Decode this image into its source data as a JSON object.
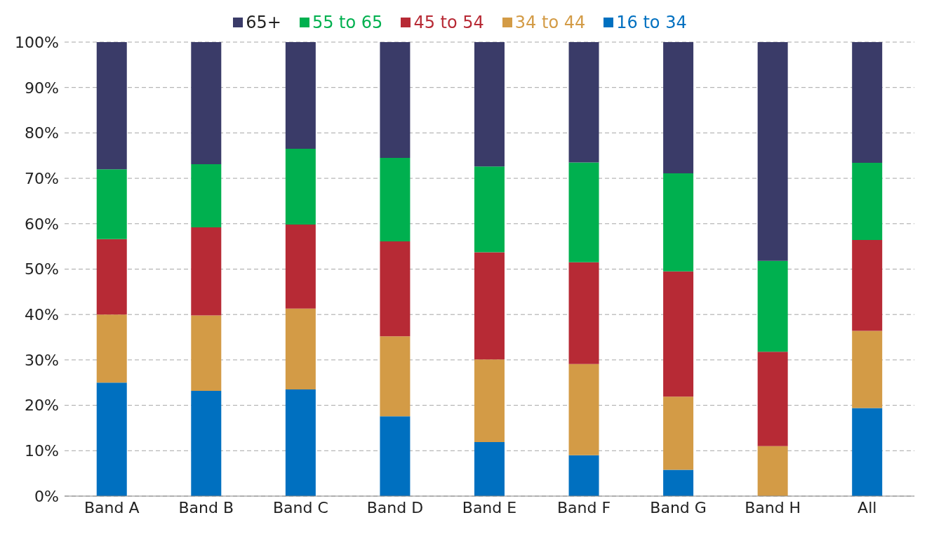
{
  "chart_data": {
    "type": "bar",
    "stacked": true,
    "categories": [
      "Band A",
      "Band B",
      "Band C",
      "Band D",
      "Band E",
      "Band F",
      "Band G",
      "Band H",
      "All"
    ],
    "series": [
      {
        "name": "16 to 34",
        "color": "#0070c0",
        "values": [
          25,
          23.2,
          23.5,
          17.6,
          11.9,
          9.0,
          5.8,
          0,
          19.4
        ]
      },
      {
        "name": "34 to 44",
        "color": "#d39b46",
        "values": [
          15,
          16.6,
          17.8,
          17.6,
          18.2,
          20.1,
          16.1,
          11.0,
          17.0
        ]
      },
      {
        "name": "45 to 54",
        "color": "#b72a35",
        "values": [
          16.6,
          19.4,
          18.5,
          20.9,
          23.6,
          22.4,
          27.6,
          20.8,
          20.0
        ]
      },
      {
        "name": "55 to 65",
        "color": "#00b04f",
        "values": [
          15.4,
          13.9,
          16.7,
          18.4,
          18.9,
          22.0,
          21.6,
          20.0,
          17.0
        ]
      },
      {
        "name": "65+",
        "color": "#3a3b68",
        "values": [
          28,
          26.9,
          23.5,
          25.5,
          27.4,
          26.5,
          28.9,
          48.2,
          26.6
        ]
      }
    ],
    "ylim": [
      0,
      100
    ],
    "yticks": [
      {
        "value": 0,
        "label": "0%"
      },
      {
        "value": 10,
        "label": "10%"
      },
      {
        "value": 20,
        "label": "20%"
      },
      {
        "value": 30,
        "label": "30%"
      },
      {
        "value": 40,
        "label": "40%"
      },
      {
        "value": 50,
        "label": "50%"
      },
      {
        "value": 60,
        "label": "60%"
      },
      {
        "value": 70,
        "label": "70%"
      },
      {
        "value": 80,
        "label": "80%"
      },
      {
        "value": 90,
        "label": "90%"
      },
      {
        "value": 100,
        "label": "100%"
      }
    ],
    "grid": "y",
    "legend": "top"
  }
}
